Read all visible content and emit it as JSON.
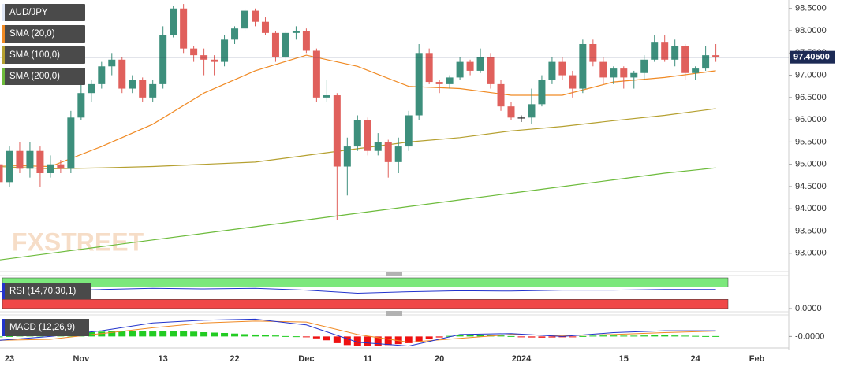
{
  "chart_data": [
    {
      "type": "candlestick",
      "title": "AUD/JPY",
      "watermark": "FXSTREET",
      "categories": [
        null,
        "23",
        null,
        null,
        null,
        null,
        null,
        null,
        "Nov",
        null,
        null,
        null,
        null,
        null,
        null,
        null,
        "13",
        null,
        null,
        null,
        null,
        null,
        null,
        "22",
        null,
        null,
        null,
        null,
        null,
        null,
        "Dec",
        null,
        null,
        null,
        null,
        null,
        "11",
        null,
        null,
        null,
        null,
        null,
        null,
        "20",
        null,
        null,
        null,
        null,
        null,
        null,
        null,
        "2024",
        null,
        null,
        null,
        null,
        null,
        null,
        null,
        null,
        null,
        "15",
        null,
        null,
        null,
        null,
        null,
        null,
        "24",
        null,
        null,
        null,
        null,
        null,
        "Feb"
      ],
      "open": [
        95.0,
        94.6,
        95.3,
        94.9,
        95.3,
        94.8,
        95.0,
        94.9,
        96.05,
        96.6,
        96.8,
        97.2,
        97.35,
        96.7,
        96.9,
        96.5,
        96.8,
        97.9,
        98.5,
        97.6,
        97.45,
        97.35,
        97.3,
        97.8,
        98.05,
        98.45,
        98.2,
        97.95,
        97.4,
        97.95,
        98.0,
        97.55,
        96.5,
        96.55,
        94.95,
        95.4,
        96.0,
        95.3,
        95.5,
        95.05,
        95.4,
        96.1,
        97.5,
        96.85,
        96.8,
        96.95,
        97.3,
        97.1,
        97.4,
        96.8,
        96.3,
        96.05,
        96.05,
        96.35,
        96.9,
        97.3,
        97.0,
        96.7,
        97.7,
        97.3,
        96.95,
        97.15,
        96.95,
        97.05,
        97.35,
        97.75,
        97.35,
        97.65,
        97.05,
        97.15,
        97.45,
        null,
        null,
        null,
        null
      ],
      "high": [
        95.2,
        95.4,
        95.5,
        95.5,
        95.4,
        95.2,
        95.1,
        96.2,
        96.8,
        96.9,
        97.3,
        97.5,
        97.4,
        97.0,
        96.95,
        96.9,
        98.1,
        98.55,
        98.6,
        97.65,
        97.6,
        97.45,
        97.9,
        98.1,
        98.5,
        98.5,
        98.3,
        98.0,
        98.0,
        98.1,
        98.05,
        97.6,
        96.9,
        96.6,
        95.6,
        96.1,
        96.05,
        95.7,
        95.55,
        95.6,
        96.2,
        97.7,
        97.6,
        96.9,
        97.0,
        97.4,
        97.35,
        97.6,
        97.5,
        96.9,
        96.4,
        96.1,
        96.7,
        97.0,
        97.4,
        97.4,
        97.1,
        97.8,
        97.8,
        97.4,
        97.2,
        97.2,
        97.1,
        97.45,
        97.9,
        97.9,
        97.8,
        97.7,
        97.2,
        97.65,
        97.7,
        null,
        null,
        null,
        null
      ],
      "low": [
        94.4,
        94.5,
        94.8,
        94.7,
        94.5,
        94.7,
        94.8,
        94.8,
        96.0,
        96.4,
        96.7,
        97.0,
        96.6,
        96.6,
        96.4,
        96.4,
        96.7,
        97.85,
        97.5,
        97.3,
        97.0,
        97.0,
        97.2,
        97.7,
        98.0,
        98.1,
        97.9,
        97.3,
        97.3,
        97.8,
        97.5,
        96.4,
        96.4,
        93.75,
        94.3,
        95.3,
        95.2,
        95.2,
        94.7,
        94.8,
        95.3,
        96.0,
        96.8,
        96.6,
        96.7,
        96.9,
        97.0,
        97.05,
        96.7,
        96.2,
        96.0,
        95.95,
        95.9,
        96.3,
        96.8,
        96.9,
        96.5,
        96.6,
        97.2,
        96.8,
        96.8,
        96.7,
        96.7,
        96.9,
        97.3,
        97.3,
        97.2,
        96.9,
        96.9,
        97.1,
        97.3,
        null,
        null,
        null,
        null
      ],
      "close": [
        94.6,
        95.3,
        94.9,
        95.3,
        94.8,
        95.0,
        94.9,
        96.05,
        96.6,
        96.8,
        97.2,
        97.35,
        96.7,
        96.9,
        96.5,
        96.8,
        97.9,
        98.5,
        97.6,
        97.45,
        97.35,
        97.3,
        97.8,
        98.05,
        98.45,
        98.2,
        97.95,
        97.4,
        97.95,
        98.0,
        97.55,
        96.5,
        96.55,
        94.95,
        95.4,
        96.0,
        95.3,
        95.5,
        95.05,
        95.4,
        96.1,
        97.5,
        96.85,
        96.8,
        96.95,
        97.3,
        97.1,
        97.4,
        96.8,
        96.3,
        96.05,
        96.05,
        96.35,
        96.9,
        97.3,
        97.0,
        96.7,
        97.7,
        97.3,
        96.95,
        97.15,
        96.95,
        97.05,
        97.35,
        97.75,
        97.35,
        97.65,
        97.05,
        97.15,
        97.45,
        97.405,
        null,
        null,
        null,
        null
      ],
      "up_color": "#3d8f7c",
      "down_color": "#e0605c",
      "doji_color": "#222222",
      "series": [
        {
          "name": "SMA (20,0)",
          "color": "#f08a24",
          "x": [
            0,
            5,
            10,
            15,
            20,
            25,
            30,
            35,
            40,
            45,
            50,
            55,
            60,
            65,
            70
          ],
          "values": [
            94.98,
            94.95,
            95.4,
            95.9,
            96.6,
            97.1,
            97.45,
            97.2,
            96.75,
            96.7,
            96.55,
            96.55,
            96.85,
            96.95,
            97.1
          ]
        },
        {
          "name": "SMA (100,0)",
          "color": "#b5a030",
          "x": [
            0,
            5,
            10,
            15,
            20,
            25,
            30,
            35,
            40,
            45,
            50,
            55,
            60,
            65,
            70
          ],
          "values": [
            94.95,
            94.9,
            94.92,
            94.95,
            95.0,
            95.05,
            95.2,
            95.35,
            95.5,
            95.6,
            95.75,
            95.85,
            95.98,
            96.1,
            96.25
          ]
        },
        {
          "name": "SMA (200,0)",
          "color": "#6dbb3c",
          "x": [
            0,
            5,
            10,
            15,
            20,
            25,
            30,
            35,
            40,
            45,
            50,
            55,
            60,
            65,
            70
          ],
          "values": [
            92.85,
            93.0,
            93.15,
            93.3,
            93.45,
            93.6,
            93.75,
            93.9,
            94.05,
            94.2,
            94.35,
            94.5,
            94.65,
            94.8,
            94.92
          ]
        }
      ],
      "title_color": "#dfe6f5",
      "last_value": 97.405,
      "last_label": "97.40500",
      "ylim": [
        92.59,
        98.69
      ],
      "yticks": [
        {
          "value": 93.0,
          "label": "93.0000"
        },
        {
          "value": 93.5,
          "label": "93.5000"
        },
        {
          "value": 94.0,
          "label": "94.0000"
        },
        {
          "value": 94.5,
          "label": "94.5000"
        },
        {
          "value": 95.0,
          "label": "95.0000"
        },
        {
          "value": 95.5,
          "label": "95.5000"
        },
        {
          "value": 96.0,
          "label": "96.0000"
        },
        {
          "value": 96.5,
          "label": "96.5000"
        },
        {
          "value": 97.0,
          "label": "97.0000"
        },
        {
          "value": 97.5,
          "label": "97.5000"
        },
        {
          "value": 98.0,
          "label": "98.0000"
        },
        {
          "value": 98.5,
          "label": "98.5000"
        }
      ]
    },
    {
      "type": "line",
      "series": [
        {
          "name": "RSI (14,70,30,1)",
          "color": "#2233cc",
          "x": [
            0,
            5,
            10,
            15,
            20,
            25,
            30,
            35,
            40,
            45,
            50,
            55,
            60,
            65,
            70
          ],
          "values": [
            55,
            58,
            62,
            66,
            64,
            66,
            60,
            50,
            55,
            58,
            57,
            60,
            60,
            62,
            62
          ]
        }
      ],
      "levels": [
        70,
        30
      ],
      "level_colors": [
        "#7ce87c",
        "#f04848"
      ],
      "ylim": [
        0,
        100
      ],
      "yticks": [
        {
          "value": 0,
          "label": "0.0000"
        }
      ]
    },
    {
      "type": "bar",
      "values": [
        0,
        0.02,
        0.04,
        0.06,
        0.08,
        0.1,
        0.12,
        0.15,
        0.2,
        0.22,
        0.25,
        0.28,
        0.3,
        0.3,
        0.28,
        0.26,
        0.28,
        0.3,
        0.28,
        0.25,
        0.22,
        0.2,
        0.18,
        0.15,
        0.12,
        0.1,
        0.08,
        0.05,
        0.02,
        0.01,
        -0.02,
        -0.1,
        -0.2,
        -0.35,
        -0.45,
        -0.5,
        -0.5,
        -0.48,
        -0.45,
        -0.4,
        -0.35,
        -0.25,
        -0.15,
        -0.05,
        0.03,
        0.06,
        0.08,
        0.1,
        0.08,
        0.05,
        0.02,
        -0.02,
        -0.05,
        -0.06,
        -0.05,
        -0.04,
        -0.03,
        0.02,
        0.04,
        0.05,
        0.05,
        0.04,
        0.04,
        0.05,
        0.06,
        0.06,
        0.05,
        0.04,
        0.03,
        0.02,
        0.02,
        null,
        null,
        null,
        null
      ],
      "up_color": "#22cc22",
      "down_color": "#ee1111",
      "series": [
        {
          "name": "MACD (12,26,9)",
          "color": "#2233cc",
          "x": [
            0,
            5,
            10,
            15,
            20,
            25,
            30,
            35,
            40,
            45,
            50,
            55,
            60,
            65,
            70
          ],
          "values": [
            -0.2,
            0,
            0.3,
            0.7,
            0.85,
            0.9,
            0.6,
            -0.3,
            -0.5,
            0.1,
            0.15,
            0,
            0.2,
            0.3,
            0.3
          ]
        }
      ],
      "signal": {
        "color": "#f08a24",
        "x": [
          0,
          5,
          10,
          15,
          20,
          25,
          30,
          35,
          40,
          45,
          50,
          55,
          60,
          65,
          70
        ],
        "values": [
          -0.2,
          -0.15,
          0.15,
          0.45,
          0.7,
          0.8,
          0.75,
          0.1,
          -0.3,
          -0.1,
          0.1,
          0.05,
          0.1,
          0.2,
          0.28
        ]
      },
      "ylim": [
        -0.6,
        1.0
      ],
      "yticks": [
        {
          "value": 0,
          "label": "-0.0000"
        }
      ]
    }
  ]
}
